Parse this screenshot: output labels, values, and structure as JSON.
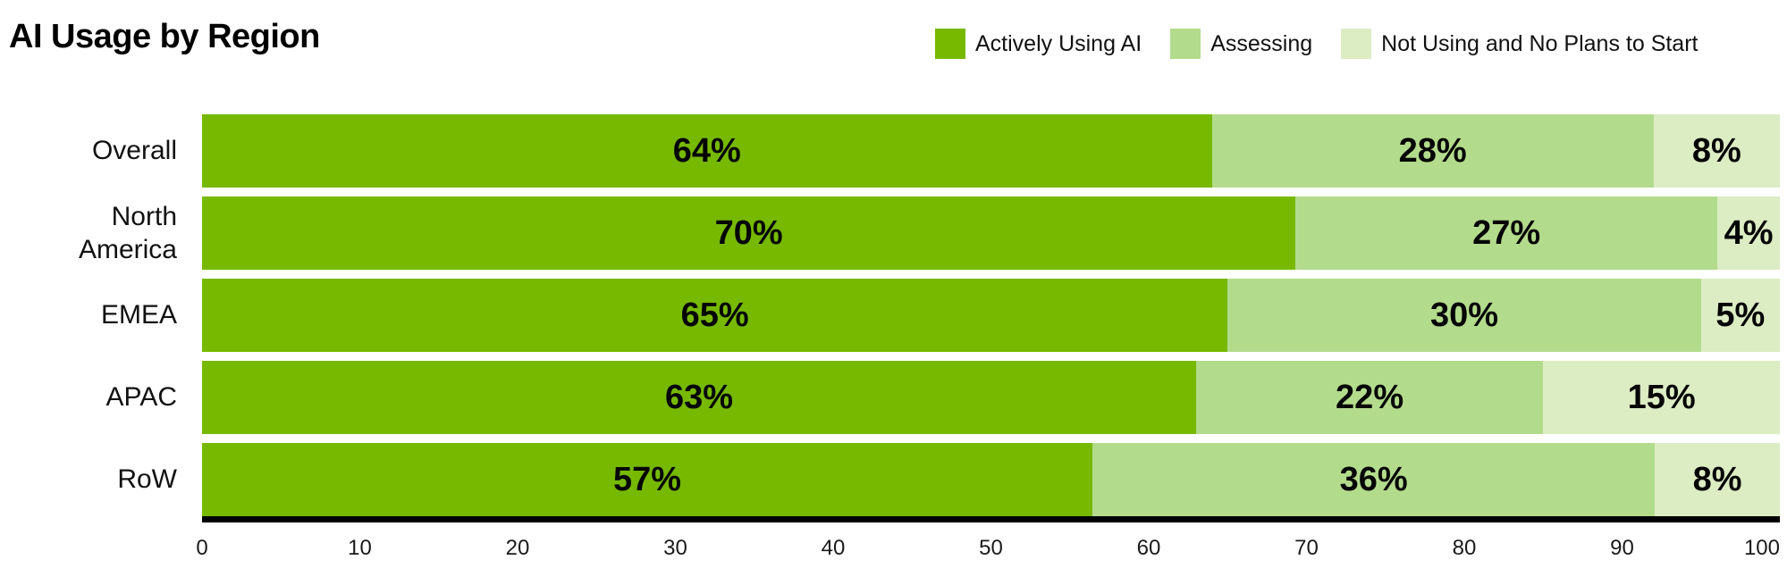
{
  "title": "AI Usage by Region",
  "colors": {
    "actively_using": "#76B900",
    "assessing": "#B3DB8C",
    "not_using": "#DCECC3",
    "axis_line": "#000000",
    "text": "#111111",
    "background": "#FFFFFF"
  },
  "chart_data": {
    "type": "bar",
    "orientation": "horizontal",
    "stacked": true,
    "title": "AI Usage by Region",
    "categories": [
      "Overall",
      "North America",
      "EMEA",
      "APAC",
      "RoW"
    ],
    "series": [
      {
        "name": "Actively Using AI",
        "color": "#76B900",
        "values": [
          64,
          70,
          65,
          63,
          57
        ],
        "labels": [
          "64%",
          "70%",
          "65%",
          "63%",
          "57%"
        ]
      },
      {
        "name": "Assessing",
        "color": "#B3DB8C",
        "values": [
          28,
          27,
          30,
          22,
          36
        ],
        "labels": [
          "28%",
          "27%",
          "30%",
          "22%",
          "36%"
        ]
      },
      {
        "name": "Not Using and No Plans to Start",
        "color": "#DCECC3",
        "values": [
          8,
          4,
          5,
          15,
          8
        ],
        "labels": [
          "8%",
          "4%",
          "5%",
          "15%",
          "8%"
        ]
      }
    ],
    "value_suffix": "%",
    "xlabel": "",
    "ylabel": "",
    "xlim": [
      0,
      100
    ],
    "xticks": [
      0,
      10,
      20,
      30,
      40,
      50,
      60,
      70,
      80,
      90,
      100
    ],
    "legend_position": "top-right",
    "grid": false,
    "value_labels": "inside-center"
  }
}
